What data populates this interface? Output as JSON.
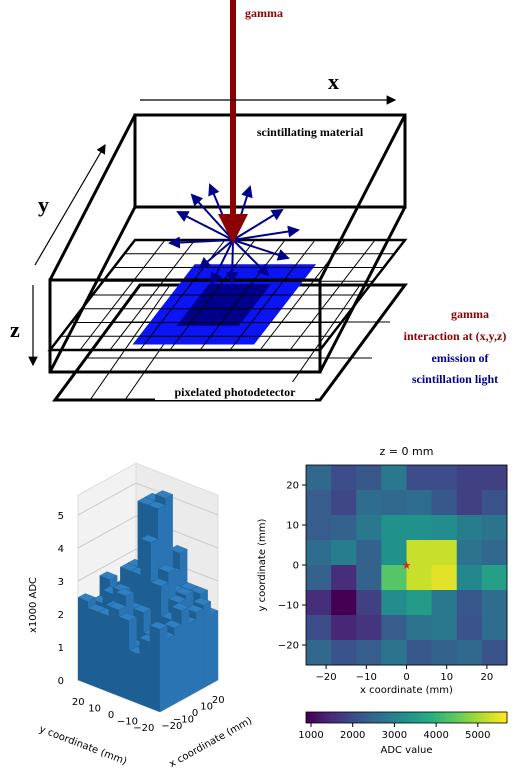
{
  "diagram": {
    "gamma_arrow": "gamma",
    "x_axis": "x",
    "y_axis": "y",
    "z_axis": "z",
    "material": "scintillating material",
    "detector": "pixelated photodetector",
    "legend_gamma": "gamma",
    "legend_interaction": "interaction at (x,y,z)",
    "legend_emission": "emission of",
    "legend_light": "scintillation light"
  },
  "chart_data": [
    {
      "type": "bar3d",
      "color": "#2f7fc1",
      "zlabel": "x1000 ADC",
      "xlabel": "x coordinate (mm)",
      "ylabel": "y coordinate (mm)",
      "xlim": [
        -25,
        25
      ],
      "ylim": [
        -25,
        25
      ],
      "zlim": [
        0,
        5.6
      ],
      "xticks": [
        {
          "value": -20,
          "label": "−20"
        },
        {
          "value": -10,
          "label": "−10"
        },
        0,
        10,
        20
      ],
      "yticks": [
        20,
        10,
        0,
        {
          "value": -10,
          "label": "−10"
        },
        {
          "value": -20,
          "label": "−20"
        }
      ],
      "zticks": [
        0,
        1,
        2,
        3,
        4,
        5
      ],
      "values": [
        [
          2.5,
          2.0,
          2.2,
          2.8,
          2.0,
          2.0,
          1.8,
          1.8
        ],
        [
          2.3,
          1.9,
          2.6,
          2.5,
          2.6,
          2.2,
          1.8,
          2.1
        ],
        [
          2.3,
          2.4,
          2.8,
          3.3,
          3.3,
          3.2,
          2.9,
          2.7
        ],
        [
          2.6,
          2.9,
          2.4,
          3.3,
          5.3,
          5.3,
          2.7,
          2.5
        ],
        [
          2.4,
          1.5,
          2.4,
          4.4,
          5.3,
          5.5,
          3.1,
          3.6
        ],
        [
          1.5,
          0.8,
          1.8,
          3.2,
          3.5,
          2.8,
          2.2,
          2.6
        ],
        [
          2.0,
          1.4,
          1.6,
          2.3,
          2.7,
          2.8,
          2.1,
          2.6
        ],
        [
          2.5,
          2.1,
          2.3,
          2.7,
          2.2,
          2.4,
          2.5,
          2.1
        ]
      ]
    },
    {
      "type": "heatmap",
      "title": "z = 0 mm",
      "xlabel": "x coordinate (mm)",
      "ylabel": "y coordinate (mm)",
      "colormap": "viridis",
      "xlim": [
        -25,
        25
      ],
      "ylim": [
        -25,
        25
      ],
      "xticks": [
        {
          "value": -20,
          "label": "−20"
        },
        {
          "value": -10,
          "label": "−10"
        },
        0,
        10,
        20
      ],
      "yticks": [
        20,
        10,
        0,
        {
          "value": -10,
          "label": "−10"
        },
        {
          "value": -20,
          "label": "−20"
        }
      ],
      "values": [
        [
          2500,
          2000,
          2200,
          2800,
          2000,
          2000,
          1800,
          1800
        ],
        [
          2300,
          1900,
          2600,
          2500,
          2600,
          2200,
          1800,
          2100
        ],
        [
          2300,
          2400,
          2800,
          3300,
          3300,
          3200,
          2900,
          2700
        ],
        [
          2600,
          2900,
          2400,
          3300,
          5300,
          5300,
          2700,
          2500
        ],
        [
          2400,
          1500,
          2400,
          4400,
          5300,
          5500,
          3100,
          3600
        ],
        [
          1500,
          800,
          1800,
          3200,
          3500,
          2800,
          2200,
          2600
        ],
        [
          2000,
          1400,
          1600,
          2300,
          2700,
          2800,
          2100,
          2600
        ],
        [
          2500,
          2100,
          2300,
          2700,
          2200,
          2400,
          2500,
          2100
        ]
      ],
      "marker": {
        "x": 0,
        "y": 0,
        "color": "#d62728"
      },
      "colorbar": {
        "label": "ADC value",
        "clim": [
          880,
          5700
        ],
        "ticks": [
          1000,
          2000,
          3000,
          4000,
          5000
        ]
      }
    }
  ]
}
